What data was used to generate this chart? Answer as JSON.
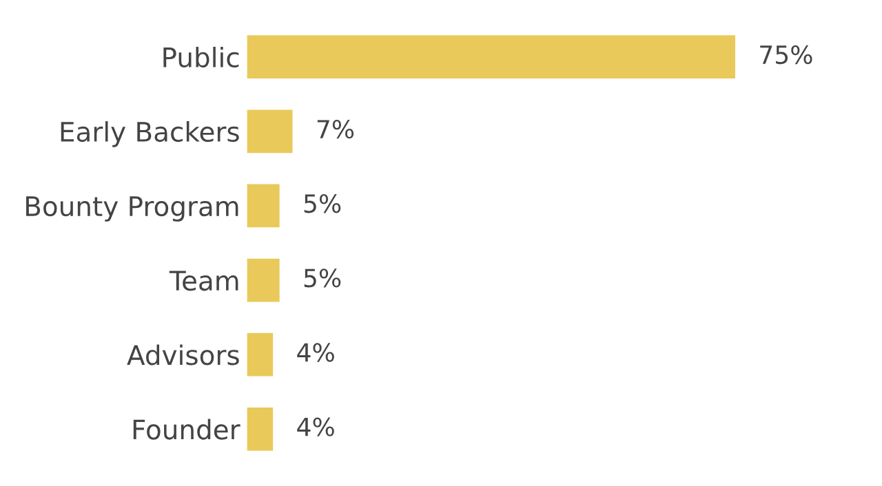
{
  "chart_data": {
    "type": "bar",
    "orientation": "horizontal",
    "categories": [
      "Public",
      "Early Backers",
      "Bounty Program",
      "Team",
      "Advisors",
      "Founder"
    ],
    "values": [
      75,
      7,
      5,
      5,
      4,
      4
    ],
    "value_labels": [
      "75%",
      "7%",
      "5%",
      "5%",
      "4%",
      "4%"
    ],
    "color": "#e9c95a",
    "grid": false,
    "legend": false,
    "tick_labels": "y"
  }
}
